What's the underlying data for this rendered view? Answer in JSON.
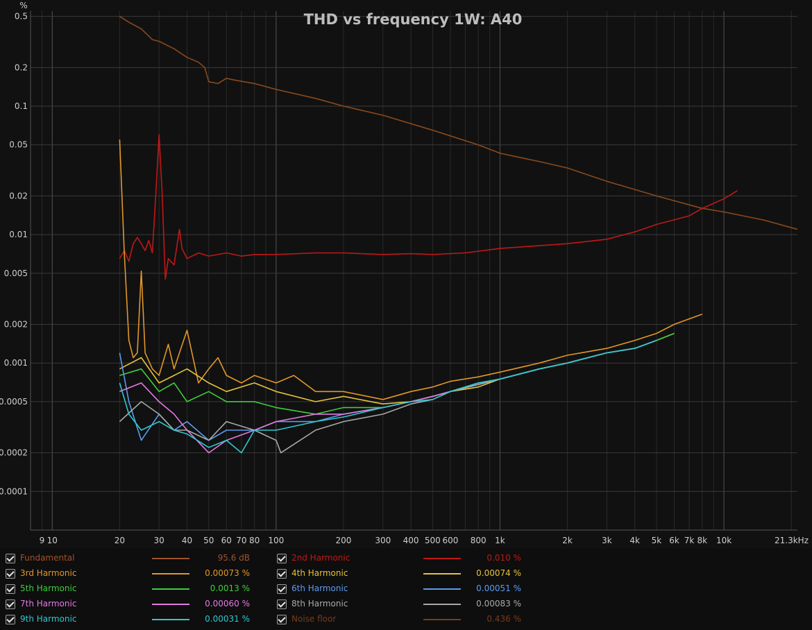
{
  "chart_data": {
    "type": "line",
    "title": "THD vs frequency 1W: A40",
    "ylabel": "%",
    "xscale": "log",
    "yscale": "log",
    "xlim": [
      8,
      21300
    ],
    "ylim": [
      5e-05,
      0.55
    ],
    "grid": true,
    "x_ticks": [
      {
        "v": 9,
        "label": "9"
      },
      {
        "v": 10,
        "label": "10"
      },
      {
        "v": 20,
        "label": "20"
      },
      {
        "v": 30,
        "label": "30"
      },
      {
        "v": 40,
        "label": "40"
      },
      {
        "v": 50,
        "label": "50"
      },
      {
        "v": 60,
        "label": "60"
      },
      {
        "v": 70,
        "label": "70"
      },
      {
        "v": 80,
        "label": "80"
      },
      {
        "v": 100,
        "label": "100"
      },
      {
        "v": 200,
        "label": "200"
      },
      {
        "v": 300,
        "label": "300"
      },
      {
        "v": 400,
        "label": "400"
      },
      {
        "v": 500,
        "label": "500"
      },
      {
        "v": 600,
        "label": "600"
      },
      {
        "v": 800,
        "label": "800"
      },
      {
        "v": 1000,
        "label": "1k"
      },
      {
        "v": 2000,
        "label": "2k"
      },
      {
        "v": 3000,
        "label": "3k"
      },
      {
        "v": 4000,
        "label": "4k"
      },
      {
        "v": 5000,
        "label": "5k"
      },
      {
        "v": 6000,
        "label": "6k"
      },
      {
        "v": 7000,
        "label": "7k"
      },
      {
        "v": 8000,
        "label": "8k"
      },
      {
        "v": 10000,
        "label": "10k"
      },
      {
        "v": 21300,
        "label": "21.3kHz"
      }
    ],
    "y_ticks": [
      {
        "v": 0.5,
        "label": "0.5"
      },
      {
        "v": 0.2,
        "label": "0.2"
      },
      {
        "v": 0.1,
        "label": "0.1"
      },
      {
        "v": 0.05,
        "label": "0.05"
      },
      {
        "v": 0.02,
        "label": "0.02"
      },
      {
        "v": 0.01,
        "label": "0.01"
      },
      {
        "v": 0.005,
        "label": "0.005"
      },
      {
        "v": 0.002,
        "label": "0.002"
      },
      {
        "v": 0.001,
        "label": "0.001"
      },
      {
        "v": 0.0005,
        "label": "0.0005"
      },
      {
        "v": 0.0002,
        "label": "0.0002"
      },
      {
        "v": 0.0001,
        "label": "0.0001"
      }
    ],
    "series": [
      {
        "name": "Noise floor",
        "color": "#8b4a1c",
        "x": [
          20,
          22,
          25,
          28,
          30,
          35,
          40,
          45,
          48,
          50,
          55,
          60,
          65,
          80,
          100,
          150,
          200,
          300,
          500,
          800,
          1000,
          1500,
          2000,
          3000,
          5000,
          8000,
          10000,
          15000,
          21300
        ],
        "y": [
          0.5,
          0.45,
          0.4,
          0.33,
          0.32,
          0.28,
          0.24,
          0.22,
          0.2,
          0.155,
          0.15,
          0.165,
          0.16,
          0.15,
          0.135,
          0.115,
          0.1,
          0.085,
          0.065,
          0.05,
          0.043,
          0.037,
          0.033,
          0.026,
          0.02,
          0.016,
          0.015,
          0.013,
          0.011
        ]
      },
      {
        "name": "2nd Harmonic",
        "color": "#c01818",
        "x": [
          20,
          21,
          22,
          23,
          24,
          25,
          26,
          27,
          28,
          29,
          30,
          31,
          32,
          33,
          35,
          37,
          38,
          40,
          45,
          50,
          60,
          70,
          80,
          100,
          150,
          200,
          300,
          400,
          500,
          700,
          1000,
          1500,
          2000,
          3000,
          4000,
          5000,
          7000,
          8000,
          10000,
          11500
        ],
        "y": [
          0.0065,
          0.0075,
          0.0062,
          0.0085,
          0.0095,
          0.0085,
          0.0075,
          0.009,
          0.0072,
          0.02,
          0.06,
          0.02,
          0.0045,
          0.0065,
          0.0058,
          0.011,
          0.0078,
          0.0065,
          0.0072,
          0.0068,
          0.0072,
          0.0068,
          0.007,
          0.007,
          0.0072,
          0.0072,
          0.007,
          0.0071,
          0.007,
          0.0072,
          0.0078,
          0.0082,
          0.0085,
          0.0092,
          0.0105,
          0.012,
          0.014,
          0.016,
          0.019,
          0.022
        ]
      },
      {
        "name": "3rd Harmonic",
        "color": "#e2982a",
        "x": [
          20,
          21,
          22,
          23,
          24,
          25,
          26,
          28,
          30,
          33,
          35,
          40,
          45,
          50,
          55,
          60,
          70,
          80,
          100,
          120,
          150,
          200,
          300,
          400,
          500,
          600,
          800,
          1000,
          1500,
          2000,
          3000,
          4000,
          5000,
          6000,
          8000
        ],
        "y": [
          0.055,
          0.007,
          0.0015,
          0.0011,
          0.0012,
          0.0052,
          0.0012,
          0.0009,
          0.0008,
          0.0014,
          0.0009,
          0.0018,
          0.0007,
          0.0009,
          0.0011,
          0.0008,
          0.0007,
          0.0008,
          0.0007,
          0.0008,
          0.0006,
          0.0006,
          0.00052,
          0.0006,
          0.00065,
          0.00072,
          0.00078,
          0.00085,
          0.001,
          0.00115,
          0.0013,
          0.0015,
          0.0017,
          0.002,
          0.0024
        ]
      },
      {
        "name": "4th Harmonic",
        "color": "#e6c43a",
        "x": [
          20,
          25,
          30,
          35,
          40,
          50,
          60,
          80,
          100,
          150,
          200,
          300,
          400,
          500,
          600,
          800,
          1000,
          1500,
          2000,
          3000,
          4000,
          5000,
          6000
        ],
        "y": [
          0.0009,
          0.0011,
          0.0007,
          0.0008,
          0.0009,
          0.0007,
          0.0006,
          0.0007,
          0.0006,
          0.0005,
          0.00055,
          0.00048,
          0.0005,
          0.00055,
          0.0006,
          0.00065,
          0.00075,
          0.0009,
          0.001,
          0.0012,
          0.0013,
          0.0015,
          0.0017
        ]
      },
      {
        "name": "5th Harmonic",
        "color": "#3ecf3e",
        "x": [
          20,
          25,
          30,
          35,
          40,
          50,
          60,
          80,
          100,
          150,
          200,
          300,
          400,
          500,
          600,
          800,
          1000,
          1500,
          2000,
          3000,
          4000,
          5000,
          6000
        ],
        "y": [
          0.0008,
          0.0009,
          0.0006,
          0.0007,
          0.0005,
          0.0006,
          0.0005,
          0.0005,
          0.00045,
          0.0004,
          0.00045,
          0.00045,
          0.0005,
          0.00055,
          0.0006,
          0.0007,
          0.00075,
          0.0009,
          0.001,
          0.0012,
          0.0013,
          0.0015,
          0.0017
        ]
      },
      {
        "name": "6th Harmonic",
        "color": "#5b9cf0",
        "x": [
          20,
          22,
          25,
          30,
          35,
          40,
          50,
          60,
          80,
          100,
          150,
          200,
          300,
          400,
          500,
          600,
          800,
          1000,
          1500,
          2000,
          3000,
          4000,
          5000
        ],
        "y": [
          0.0012,
          0.0005,
          0.00025,
          0.0004,
          0.0003,
          0.00035,
          0.00025,
          0.0003,
          0.0003,
          0.00035,
          0.00035,
          0.0004,
          0.00045,
          0.0005,
          0.00055,
          0.0006,
          0.0007,
          0.00075,
          0.0009,
          0.001,
          0.0012,
          0.0013,
          0.0015
        ]
      },
      {
        "name": "7th Harmonic",
        "color": "#e47ae4",
        "x": [
          20,
          25,
          30,
          35,
          40,
          50,
          60,
          80,
          100,
          150,
          200,
          300,
          400,
          500,
          600,
          800,
          1000,
          1500,
          2000,
          3000,
          4000,
          5000
        ],
        "y": [
          0.0006,
          0.0007,
          0.0005,
          0.0004,
          0.0003,
          0.0002,
          0.00025,
          0.0003,
          0.00035,
          0.0004,
          0.0004,
          0.00045,
          0.0005,
          0.00055,
          0.0006,
          0.00068,
          0.00075,
          0.0009,
          0.001,
          0.0012,
          0.0013,
          0.0015
        ]
      },
      {
        "name": "8th Harmonic",
        "color": "#a9a9a9",
        "x": [
          20,
          25,
          30,
          35,
          40,
          50,
          60,
          80,
          100,
          105,
          150,
          200,
          300,
          400,
          500,
          600,
          800,
          1000,
          1500,
          2000,
          3000,
          4000,
          5000
        ],
        "y": [
          0.00035,
          0.0005,
          0.0004,
          0.0003,
          0.0003,
          0.00025,
          0.00035,
          0.0003,
          0.00025,
          0.0002,
          0.0003,
          0.00035,
          0.0004,
          0.00048,
          0.00052,
          0.0006,
          0.00068,
          0.00075,
          0.0009,
          0.001,
          0.0012,
          0.0013,
          0.0015
        ]
      },
      {
        "name": "9th Harmonic",
        "color": "#2ec8cf",
        "x": [
          20,
          22,
          25,
          30,
          35,
          40,
          50,
          60,
          70,
          80,
          100,
          150,
          200,
          300,
          400,
          500,
          600,
          800,
          1000,
          1500,
          2000,
          3000,
          4000,
          5000
        ],
        "y": [
          0.0007,
          0.0004,
          0.0003,
          0.00035,
          0.0003,
          0.00028,
          0.00022,
          0.00025,
          0.0002,
          0.0003,
          0.0003,
          0.00035,
          0.00038,
          0.00045,
          0.0005,
          0.00052,
          0.0006,
          0.0007,
          0.00075,
          0.0009,
          0.001,
          0.0012,
          0.0013,
          0.0015
        ]
      }
    ]
  },
  "legend": [
    {
      "name": "Fundamental",
      "value": "95.6 dB",
      "color": "#a0522d",
      "col": 0,
      "row": 0
    },
    {
      "name": "2nd Harmonic",
      "value": "0.010 %",
      "color": "#c01818",
      "col": 1,
      "row": 0
    },
    {
      "name": "3rd Harmonic",
      "value": "0.00073 %",
      "color": "#e2982a",
      "col": 0,
      "row": 1
    },
    {
      "name": "4th Harmonic",
      "value": "0.00074 %",
      "color": "#e6c43a",
      "col": 1,
      "row": 1
    },
    {
      "name": "5th Harmonic",
      "value": "0.0013 %",
      "color": "#3ecf3e",
      "col": 0,
      "row": 2
    },
    {
      "name": "6th Harmonic",
      "value": "0.00051 %",
      "color": "#5b9cf0",
      "col": 1,
      "row": 2
    },
    {
      "name": "7th Harmonic",
      "value": "0.00060 %",
      "color": "#e47ae4",
      "col": 0,
      "row": 3
    },
    {
      "name": "8th Harmonic",
      "value": "0.00083 %",
      "color": "#a9a9a9",
      "col": 1,
      "row": 3
    },
    {
      "name": "9th Harmonic",
      "value": "0.00031 %",
      "color": "#2ec8cf",
      "col": 0,
      "row": 4
    },
    {
      "name": "Noise floor",
      "value": "0.436 %",
      "color": "#7a3b1a",
      "col": 1,
      "row": 4
    }
  ]
}
